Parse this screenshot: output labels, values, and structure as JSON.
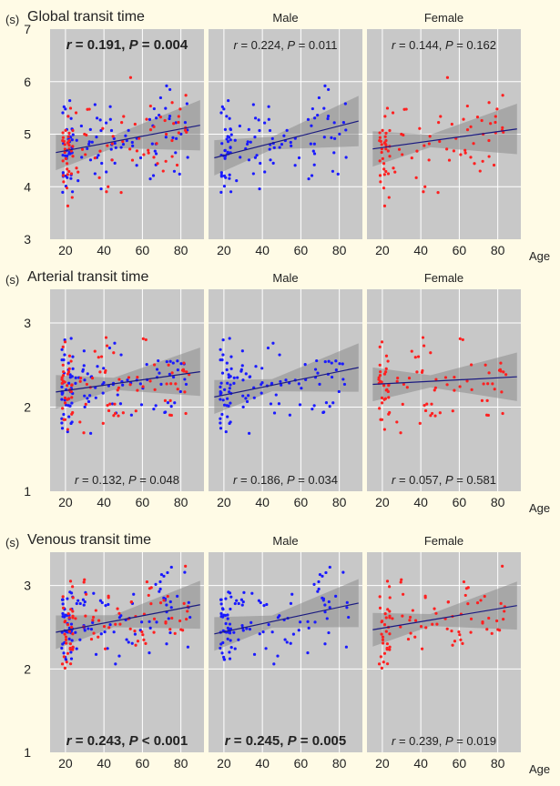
{
  "page": {
    "background": "#fffbe6",
    "panel_bg": "#c8c8c8",
    "male_color": "#1a1aff",
    "female_color": "#ff2020",
    "fit_color": "#1a1a80",
    "band_color": "#8c8c8c"
  },
  "axes": {
    "unit_label": "(s)",
    "age_label": "Age",
    "x_ticks": [
      "20",
      "40",
      "60",
      "80"
    ],
    "x_range": [
      12,
      92
    ]
  },
  "chart_data": [
    {
      "type": "scatter",
      "title": "Global transit time",
      "y_ticks": [
        "3",
        "4",
        "5",
        "6",
        "7"
      ],
      "ylim": [
        3,
        7
      ],
      "panels": [
        {
          "title": "",
          "stat_r": "r = 0.191, ",
          "stat_p": "P = 0.004",
          "bold": true,
          "stat_position": "top",
          "groups": [
            "male",
            "female"
          ],
          "fit": [
            [
              15,
              4.65
            ],
            [
              90,
              5.17
            ]
          ]
        },
        {
          "title": "Male",
          "stat_r": "r = 0.224, ",
          "stat_p": "P = 0.011",
          "bold": false,
          "stat_position": "top",
          "groups": [
            "male"
          ],
          "fit": [
            [
              15,
              4.55
            ],
            [
              90,
              5.25
            ]
          ]
        },
        {
          "title": "Female",
          "stat_r": "r = 0.144, ",
          "stat_p": "P = 0.162",
          "bold": false,
          "stat_position": "top",
          "groups": [
            "female"
          ],
          "fit": [
            [
              15,
              4.72
            ],
            [
              90,
              5.1
            ]
          ]
        }
      ]
    },
    {
      "type": "scatter",
      "title": "Arterial transit time",
      "y_ticks": [
        "1",
        "2",
        "3"
      ],
      "ylim": [
        1,
        3.4
      ],
      "panels": [
        {
          "title": "",
          "stat_r": "r = 0.132, ",
          "stat_p": "P = 0.048",
          "bold": false,
          "stat_position": "bottom",
          "groups": [
            "male",
            "female"
          ],
          "fit": [
            [
              15,
              2.18
            ],
            [
              90,
              2.42
            ]
          ]
        },
        {
          "title": "Male",
          "stat_r": "r = 0.186, ",
          "stat_p": "P = 0.034",
          "bold": false,
          "stat_position": "bottom",
          "groups": [
            "male"
          ],
          "fit": [
            [
              15,
              2.12
            ],
            [
              90,
              2.47
            ]
          ]
        },
        {
          "title": "Female",
          "stat_r": "r = 0.057, ",
          "stat_p": "P = 0.581",
          "bold": false,
          "stat_position": "bottom",
          "groups": [
            "female"
          ],
          "fit": [
            [
              15,
              2.27
            ],
            [
              90,
              2.36
            ]
          ]
        }
      ]
    },
    {
      "type": "scatter",
      "title": "Venous transit time",
      "y_ticks": [
        "1",
        "2",
        "3"
      ],
      "ylim": [
        1,
        3.4
      ],
      "panels": [
        {
          "title": "",
          "stat_r": "r = 0.243, ",
          "stat_p": "P < 0.001",
          "bold": true,
          "stat_position": "bottom",
          "groups": [
            "male",
            "female"
          ],
          "fit": [
            [
              15,
              2.44
            ],
            [
              90,
              2.77
            ]
          ]
        },
        {
          "title": "Male",
          "stat_r": "r = 0.245, ",
          "stat_p": "P = 0.005",
          "bold": true,
          "stat_position": "bottom",
          "groups": [
            "male"
          ],
          "fit": [
            [
              15,
              2.42
            ],
            [
              90,
              2.79
            ]
          ]
        },
        {
          "title": "Female",
          "stat_r": "r = 0.239, ",
          "stat_p": "P = 0.019",
          "bold": false,
          "stat_position": "bottom",
          "groups": [
            "female"
          ],
          "fit": [
            [
              15,
              2.47
            ],
            [
              90,
              2.76
            ]
          ]
        }
      ]
    }
  ]
}
